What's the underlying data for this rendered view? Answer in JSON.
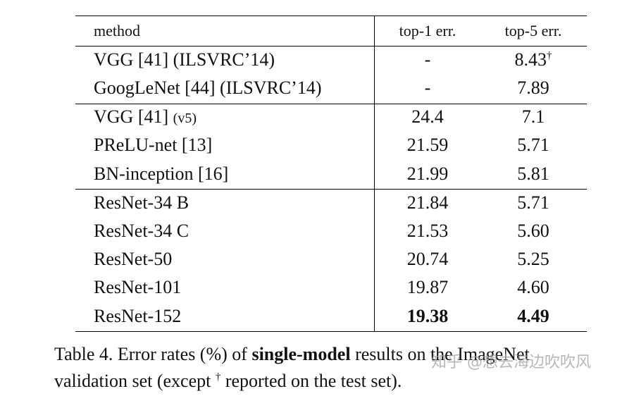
{
  "table": {
    "header": [
      "method",
      "top-1 err.",
      "top-5 err."
    ],
    "groups": [
      [
        {
          "cells": [
            "VGG [41] (ILSVRC’14)",
            "-",
            "8.43"
          ],
          "top5_mark": "†"
        },
        {
          "cells": [
            "GoogLeNet [44] (ILSVRC’14)",
            "-",
            "7.89"
          ]
        }
      ],
      [
        {
          "cells": [
            "VGG [41]",
            "24.4",
            "7.1"
          ],
          "method_note": "(v5)"
        },
        {
          "cells": [
            "PReLU-net [13]",
            "21.59",
            "5.71"
          ]
        },
        {
          "cells": [
            "BN-inception [16]",
            "21.99",
            "5.81"
          ]
        }
      ],
      [
        {
          "cells": [
            "ResNet-34 B",
            "21.84",
            "5.71"
          ]
        },
        {
          "cells": [
            "ResNet-34 C",
            "21.53",
            "5.60"
          ]
        },
        {
          "cells": [
            "ResNet-50",
            "20.74",
            "5.25"
          ]
        },
        {
          "cells": [
            "ResNet-101",
            "19.87",
            "4.60"
          ]
        },
        {
          "cells": [
            "ResNet-152",
            "19.38",
            "4.49"
          ],
          "bold_values": true
        }
      ]
    ]
  },
  "caption": {
    "lines": [
      [
        {
          "text": "Table 4. Error rates (%) of "
        },
        {
          "text": "single-model",
          "bold": true
        },
        {
          "text": " results on the ImageNet"
        }
      ],
      [
        {
          "text": "validation set (except "
        },
        {
          "text": "†",
          "sup": true
        },
        {
          "text": " reported on the test set)."
        }
      ]
    ]
  },
  "watermark": "知乎 @想去海边吹吹风"
}
